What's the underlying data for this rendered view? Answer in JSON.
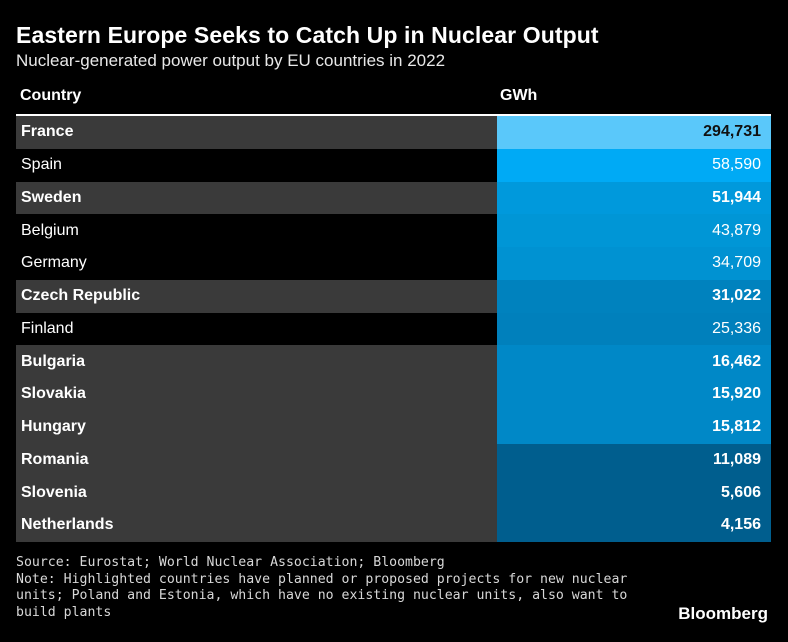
{
  "title": "Eastern Europe Seeks to Catch Up in Nuclear Output",
  "subtitle": "Nuclear-generated power output by EU countries in 2022",
  "columns": {
    "country": "Country",
    "value": "GWh"
  },
  "chart_data": {
    "type": "table",
    "title": "Eastern Europe Seeks to Catch Up in Nuclear Output",
    "subtitle": "Nuclear-generated power output by EU countries in 2022",
    "columns": [
      "Country",
      "GWh"
    ],
    "rows": [
      {
        "country": "France",
        "value": 294731,
        "label": "294,731",
        "highlighted": true,
        "color": "#5AC8FA"
      },
      {
        "country": "Spain",
        "value": 58590,
        "label": "58,590",
        "highlighted": false,
        "color": "#00AAF5"
      },
      {
        "country": "Sweden",
        "value": 51944,
        "label": "51,944",
        "highlighted": true,
        "color": "#0099DC"
      },
      {
        "country": "Belgium",
        "value": 43879,
        "label": "43,879",
        "highlighted": false,
        "color": "#0096D6"
      },
      {
        "country": "Germany",
        "value": 34709,
        "label": "34,709",
        "highlighted": false,
        "color": "#0092D2"
      },
      {
        "country": "Czech Republic",
        "value": 31022,
        "label": "31,022",
        "highlighted": true,
        "color": "#0082BE"
      },
      {
        "country": "Finland",
        "value": 25336,
        "label": "25,336",
        "highlighted": false,
        "color": "#0080BC"
      },
      {
        "country": "Bulgaria",
        "value": 16462,
        "label": "16,462",
        "highlighted": true,
        "color": "#0088C7"
      },
      {
        "country": "Slovakia",
        "value": 15920,
        "label": "15,920",
        "highlighted": true,
        "color": "#0088C7"
      },
      {
        "country": "Hungary",
        "value": 15812,
        "label": "15,812",
        "highlighted": true,
        "color": "#0088C7"
      },
      {
        "country": "Romania",
        "value": 11089,
        "label": "11,089",
        "highlighted": true,
        "color": "#005E8E"
      },
      {
        "country": "Slovenia",
        "value": 5606,
        "label": "5,606",
        "highlighted": true,
        "color": "#005E8E"
      },
      {
        "country": "Netherlands",
        "value": 4156,
        "label": "4,156",
        "highlighted": true,
        "color": "#005E8E"
      }
    ],
    "title_color": "#FFFFFF",
    "text_color_light": "#FFFFFF",
    "text_color_dark": "#111111"
  },
  "footer": {
    "source": "Source: Eurostat; World Nuclear Association; Bloomberg",
    "note_line1": "Note: Highlighted countries have planned or proposed projects for new nuclear",
    "note_line2": "units; Poland and Estonia, which have no existing nuclear units, also want to",
    "note_line3": "build plants"
  },
  "brand": "Bloomberg"
}
